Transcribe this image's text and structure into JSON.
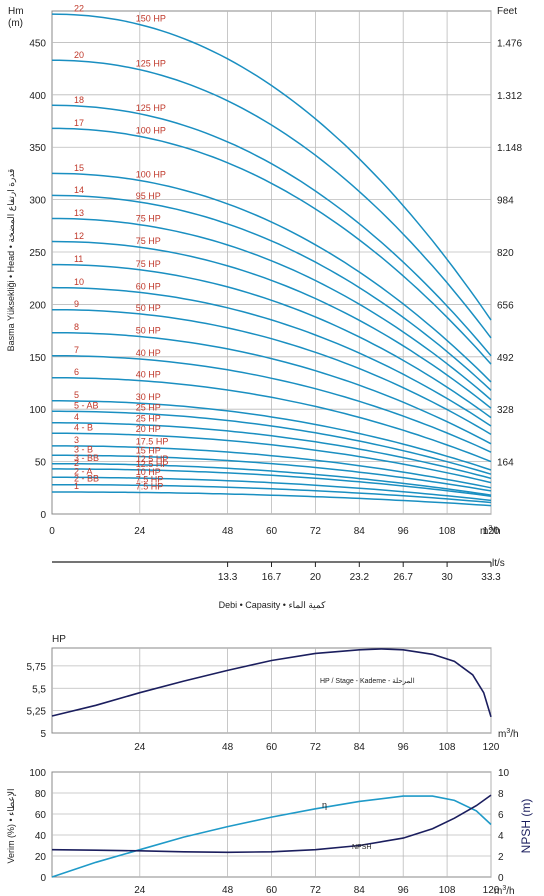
{
  "chart_data": [
    {
      "type": "line",
      "ylabel_left": "Hm\n(m)",
      "ylabel_right": "Feet",
      "vertical_label": "Basma Yüksekliği • Head • قدرة ارتفاع المضخة",
      "xlabel_unit": "m³/h",
      "flow_label": "Debi • Capasity • كمية الماء",
      "ls_unit": "lt/s",
      "x_ticks": [
        0,
        24,
        48,
        60,
        72,
        84,
        96,
        108,
        120
      ],
      "y_ticks": [
        0,
        50,
        100,
        150,
        200,
        250,
        300,
        350,
        400,
        450
      ],
      "feet_ticks": [
        {
          "m": 50,
          "label": "164"
        },
        {
          "m": 100,
          "label": "328"
        },
        {
          "m": 150,
          "label": "492"
        },
        {
          "m": 200,
          "label": "656"
        },
        {
          "m": 250,
          "label": "820"
        },
        {
          "m": 300,
          "label": "984"
        },
        {
          "m": 350,
          "label": "1.148"
        },
        {
          "m": 400,
          "label": "1.312"
        },
        {
          "m": 450,
          "label": "1.476"
        }
      ],
      "ls_ticks": [
        {
          "x": 48,
          "label": "13.3"
        },
        {
          "x": 60,
          "label": "16.7"
        },
        {
          "x": 72,
          "label": "20"
        },
        {
          "x": 84,
          "label": "23.2"
        },
        {
          "x": 96,
          "label": "26.7"
        },
        {
          "x": 108,
          "label": "30"
        },
        {
          "x": 120,
          "label": "33.3"
        }
      ],
      "xlim": [
        0,
        120
      ],
      "ylim": [
        0,
        480
      ],
      "series": [
        {
          "name": "22",
          "hp": "150 HP",
          "shutoff": 477,
          "at120": 185
        },
        {
          "name": "20",
          "hp": "125 HP",
          "shutoff": 433,
          "at120": 168
        },
        {
          "name": "18",
          "hp": "125 HP",
          "shutoff": 390,
          "at120": 151
        },
        {
          "name": "17",
          "hp": "100 HP",
          "shutoff": 368,
          "at120": 143
        },
        {
          "name": "15",
          "hp": "100 HP",
          "shutoff": 325,
          "at120": 126
        },
        {
          "name": "14",
          "hp": "95 HP",
          "shutoff": 304,
          "at120": 118
        },
        {
          "name": "13",
          "hp": "75 HP",
          "shutoff": 282,
          "at120": 109
        },
        {
          "name": "12",
          "hp": "75 HP",
          "shutoff": 260,
          "at120": 101
        },
        {
          "name": "11",
          "hp": "75 HP",
          "shutoff": 238,
          "at120": 92
        },
        {
          "name": "10",
          "hp": "60 HP",
          "shutoff": 216,
          "at120": 84
        },
        {
          "name": "9",
          "hp": "50 HP",
          "shutoff": 195,
          "at120": 76
        },
        {
          "name": "8",
          "hp": "50 HP",
          "shutoff": 173,
          "at120": 67
        },
        {
          "name": "7",
          "hp": "40 HP",
          "shutoff": 151,
          "at120": 59
        },
        {
          "name": "6",
          "hp": "40 HP",
          "shutoff": 130,
          "at120": 50
        },
        {
          "name": "5",
          "hp": "30 HP",
          "shutoff": 108,
          "at120": 42
        },
        {
          "name": "5 - AB",
          "hp": "25 HP",
          "shutoff": 98,
          "at120": 38
        },
        {
          "name": "4",
          "hp": "25 HP",
          "shutoff": 87,
          "at120": 34
        },
        {
          "name": "4 - B",
          "hp": "20 HP",
          "shutoff": 77,
          "at120": 30
        },
        {
          "name": "3",
          "hp": "17.5 HP",
          "shutoff": 65,
          "at120": 25
        },
        {
          "name": "3 - B",
          "hp": "15 HP",
          "shutoff": 56,
          "at120": 22
        },
        {
          "name": "3 - BB",
          "hp": "12.5 HP",
          "shutoff": 48,
          "at120": 18
        },
        {
          "name": "2",
          "hp": "12.5 HP",
          "shutoff": 43,
          "at120": 17
        },
        {
          "name": "2 - A",
          "hp": "10 HP",
          "shutoff": 35,
          "at120": 13
        },
        {
          "name": "2 - BB",
          "hp": "7.5 HP",
          "shutoff": 28,
          "at120": 11
        },
        {
          "name": "1",
          "hp": "7.5 HP",
          "shutoff": 21,
          "at120": 8
        }
      ]
    },
    {
      "type": "line",
      "ylabel": "HP",
      "xlabel_unit": "m³/h",
      "x_ticks": [
        24,
        48,
        60,
        72,
        84,
        96,
        108,
        120
      ],
      "y_ticks": [
        "5",
        "5,25",
        "5,5",
        "5,75"
      ],
      "xlim": [
        0,
        120
      ],
      "ylim": [
        5,
        5.95
      ],
      "annotation": "HP / Stage - Kademe - المرحلة",
      "series": [
        {
          "x": [
            0,
            12,
            24,
            36,
            48,
            60,
            72,
            84,
            90,
            96,
            104,
            110,
            115,
            118,
            120
          ],
          "y": [
            5.19,
            5.31,
            5.45,
            5.58,
            5.7,
            5.81,
            5.89,
            5.93,
            5.94,
            5.93,
            5.88,
            5.8,
            5.65,
            5.45,
            5.18
          ]
        }
      ]
    },
    {
      "type": "line",
      "ylabel_left": "Verim (%) • الإعطاء",
      "ylabel_right": "NPSH (m)",
      "xlabel_unit": "m³/h",
      "x_ticks": [
        24,
        48,
        60,
        72,
        84,
        96,
        108,
        120
      ],
      "y_ticks_left": [
        "0",
        "20",
        "40",
        "60",
        "80",
        "100"
      ],
      "y_ticks_right": [
        "0",
        "2",
        "4",
        "6",
        "8",
        "10"
      ],
      "xlim": [
        0,
        120
      ],
      "series": [
        {
          "name": "η",
          "axis": "left",
          "x": [
            0,
            12,
            24,
            36,
            48,
            60,
            72,
            84,
            96,
            104,
            110,
            116,
            120
          ],
          "y": [
            0,
            14,
            26,
            38,
            48,
            57,
            65,
            72,
            77,
            77,
            73,
            63,
            50
          ]
        },
        {
          "name": "NPSH",
          "axis": "right",
          "x": [
            0,
            12,
            24,
            36,
            48,
            60,
            72,
            84,
            96,
            104,
            110,
            116,
            120
          ],
          "y": [
            2.6,
            2.55,
            2.5,
            2.4,
            2.35,
            2.4,
            2.6,
            3.0,
            3.7,
            4.6,
            5.6,
            6.8,
            7.8
          ]
        }
      ]
    }
  ]
}
